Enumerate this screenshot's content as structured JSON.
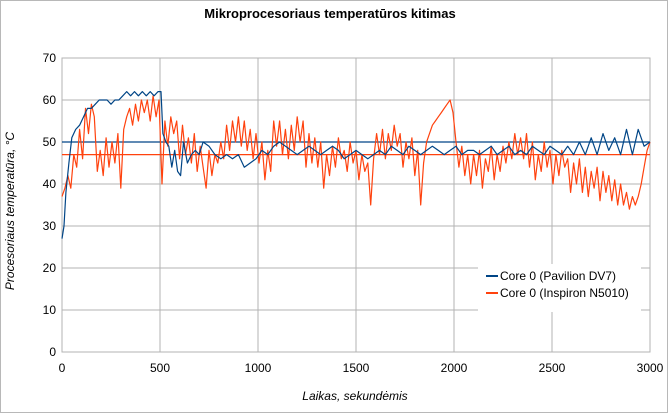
{
  "chart_data": {
    "type": "line",
    "title": "Mikroprocesoriaus temperatūros kitimas",
    "xlabel": "Laikas, sekundėmis",
    "ylabel": "Procesoriaus temperatūra, °C",
    "xlim": [
      0,
      3000
    ],
    "ylim": [
      0,
      70
    ],
    "xticks": [
      "0",
      "500",
      "1000",
      "1500",
      "2000",
      "2500",
      "3000"
    ],
    "yticks": [
      "0",
      "10",
      "20",
      "30",
      "40",
      "50",
      "60",
      "70"
    ],
    "grid": true,
    "legend_position": "bottom-right",
    "series": [
      {
        "name": "Core 0 (Pavilion DV7)",
        "color": "#004586",
        "reference_line": 50,
        "points": [
          [
            0,
            27
          ],
          [
            10,
            30
          ],
          [
            20,
            38
          ],
          [
            35,
            45
          ],
          [
            50,
            51
          ],
          [
            70,
            53
          ],
          [
            90,
            54
          ],
          [
            110,
            56
          ],
          [
            130,
            58
          ],
          [
            150,
            58
          ],
          [
            170,
            59
          ],
          [
            190,
            60
          ],
          [
            210,
            60
          ],
          [
            230,
            60
          ],
          [
            250,
            59
          ],
          [
            270,
            60
          ],
          [
            290,
            60
          ],
          [
            310,
            61
          ],
          [
            330,
            62
          ],
          [
            350,
            61
          ],
          [
            370,
            62
          ],
          [
            390,
            61
          ],
          [
            410,
            62
          ],
          [
            430,
            61
          ],
          [
            450,
            62
          ],
          [
            470,
            61
          ],
          [
            490,
            62
          ],
          [
            505,
            62
          ],
          [
            515,
            52
          ],
          [
            530,
            50
          ],
          [
            545,
            49
          ],
          [
            560,
            44
          ],
          [
            575,
            48
          ],
          [
            590,
            43
          ],
          [
            605,
            42
          ],
          [
            620,
            50
          ],
          [
            640,
            45
          ],
          [
            660,
            47
          ],
          [
            680,
            48
          ],
          [
            700,
            47
          ],
          [
            720,
            50
          ],
          [
            750,
            49
          ],
          [
            780,
            47
          ],
          [
            810,
            46
          ],
          [
            840,
            47
          ],
          [
            870,
            46
          ],
          [
            900,
            47
          ],
          [
            930,
            44
          ],
          [
            960,
            45
          ],
          [
            990,
            46
          ],
          [
            1020,
            48
          ],
          [
            1050,
            47
          ],
          [
            1080,
            49
          ],
          [
            1110,
            50
          ],
          [
            1140,
            49
          ],
          [
            1170,
            48
          ],
          [
            1200,
            47
          ],
          [
            1230,
            48
          ],
          [
            1260,
            49
          ],
          [
            1290,
            48
          ],
          [
            1320,
            47
          ],
          [
            1350,
            48
          ],
          [
            1380,
            49
          ],
          [
            1410,
            48
          ],
          [
            1440,
            46
          ],
          [
            1470,
            47
          ],
          [
            1500,
            48
          ],
          [
            1530,
            47
          ],
          [
            1560,
            46
          ],
          [
            1590,
            47
          ],
          [
            1620,
            48
          ],
          [
            1650,
            47
          ],
          [
            1680,
            49
          ],
          [
            1710,
            48
          ],
          [
            1740,
            47
          ],
          [
            1770,
            49
          ],
          [
            1800,
            48
          ],
          [
            1830,
            47
          ],
          [
            1860,
            48
          ],
          [
            1890,
            49
          ],
          [
            1920,
            48
          ],
          [
            1950,
            47
          ],
          [
            1980,
            48
          ],
          [
            2010,
            49
          ],
          [
            2040,
            47
          ],
          [
            2070,
            48
          ],
          [
            2100,
            48
          ],
          [
            2130,
            47
          ],
          [
            2160,
            48
          ],
          [
            2190,
            49
          ],
          [
            2220,
            47
          ],
          [
            2250,
            48
          ],
          [
            2280,
            49
          ],
          [
            2310,
            47
          ],
          [
            2340,
            48
          ],
          [
            2370,
            47
          ],
          [
            2400,
            49
          ],
          [
            2430,
            48
          ],
          [
            2460,
            47
          ],
          [
            2490,
            49
          ],
          [
            2520,
            48
          ],
          [
            2550,
            47
          ],
          [
            2580,
            49
          ],
          [
            2610,
            47
          ],
          [
            2640,
            50
          ],
          [
            2670,
            47
          ],
          [
            2700,
            51
          ],
          [
            2730,
            47
          ],
          [
            2760,
            52
          ],
          [
            2790,
            48
          ],
          [
            2820,
            51
          ],
          [
            2850,
            47
          ],
          [
            2880,
            53
          ],
          [
            2910,
            47
          ],
          [
            2940,
            53
          ],
          [
            2970,
            49
          ],
          [
            3000,
            50
          ]
        ]
      },
      {
        "name": "Core 0 (Inspiron N5010)",
        "color": "#ff420e",
        "reference_line": 47,
        "points": [
          [
            0,
            37
          ],
          [
            15,
            39
          ],
          [
            30,
            42
          ],
          [
            45,
            39
          ],
          [
            60,
            47
          ],
          [
            75,
            44
          ],
          [
            90,
            53
          ],
          [
            105,
            46
          ],
          [
            120,
            58
          ],
          [
            135,
            52
          ],
          [
            150,
            59
          ],
          [
            165,
            56
          ],
          [
            180,
            43
          ],
          [
            195,
            48
          ],
          [
            210,
            42
          ],
          [
            225,
            51
          ],
          [
            240,
            44
          ],
          [
            255,
            50
          ],
          [
            270,
            45
          ],
          [
            285,
            52
          ],
          [
            300,
            39
          ],
          [
            315,
            53
          ],
          [
            330,
            56
          ],
          [
            345,
            58
          ],
          [
            360,
            54
          ],
          [
            375,
            59
          ],
          [
            390,
            55
          ],
          [
            405,
            60
          ],
          [
            420,
            57
          ],
          [
            435,
            60
          ],
          [
            450,
            55
          ],
          [
            465,
            61
          ],
          [
            480,
            56
          ],
          [
            495,
            60
          ],
          [
            510,
            40
          ],
          [
            525,
            55
          ],
          [
            540,
            49
          ],
          [
            555,
            56
          ],
          [
            570,
            52
          ],
          [
            585,
            55
          ],
          [
            600,
            46
          ],
          [
            615,
            54
          ],
          [
            630,
            47
          ],
          [
            645,
            51
          ],
          [
            660,
            45
          ],
          [
            675,
            52
          ],
          [
            690,
            43
          ],
          [
            705,
            49
          ],
          [
            720,
            44
          ],
          [
            735,
            39
          ],
          [
            750,
            48
          ],
          [
            765,
            42
          ],
          [
            780,
            47
          ],
          [
            795,
            45
          ],
          [
            810,
            50
          ],
          [
            825,
            46
          ],
          [
            840,
            54
          ],
          [
            855,
            48
          ],
          [
            870,
            55
          ],
          [
            885,
            50
          ],
          [
            900,
            56
          ],
          [
            915,
            49
          ],
          [
            930,
            55
          ],
          [
            945,
            48
          ],
          [
            960,
            53
          ],
          [
            975,
            46
          ],
          [
            990,
            52
          ],
          [
            1005,
            45
          ],
          [
            1020,
            50
          ],
          [
            1035,
            41
          ],
          [
            1050,
            48
          ],
          [
            1065,
            43
          ],
          [
            1080,
            55
          ],
          [
            1095,
            49
          ],
          [
            1110,
            55
          ],
          [
            1125,
            47
          ],
          [
            1140,
            53
          ],
          [
            1155,
            46
          ],
          [
            1170,
            54
          ],
          [
            1185,
            48
          ],
          [
            1200,
            56
          ],
          [
            1215,
            50
          ],
          [
            1230,
            55
          ],
          [
            1245,
            44
          ],
          [
            1260,
            52
          ],
          [
            1275,
            45
          ],
          [
            1290,
            51
          ],
          [
            1305,
            44
          ],
          [
            1320,
            50
          ],
          [
            1335,
            39
          ],
          [
            1350,
            47
          ],
          [
            1365,
            42
          ],
          [
            1380,
            49
          ],
          [
            1395,
            44
          ],
          [
            1410,
            51
          ],
          [
            1425,
            46
          ],
          [
            1440,
            48
          ],
          [
            1455,
            43
          ],
          [
            1470,
            50
          ],
          [
            1485,
            45
          ],
          [
            1500,
            48
          ],
          [
            1515,
            41
          ],
          [
            1530,
            47
          ],
          [
            1545,
            43
          ],
          [
            1560,
            45
          ],
          [
            1575,
            35
          ],
          [
            1590,
            46
          ],
          [
            1605,
            52
          ],
          [
            1620,
            47
          ],
          [
            1635,
            53
          ],
          [
            1650,
            46
          ],
          [
            1665,
            52
          ],
          [
            1680,
            48
          ],
          [
            1695,
            54
          ],
          [
            1710,
            49
          ],
          [
            1725,
            52
          ],
          [
            1740,
            44
          ],
          [
            1755,
            50
          ],
          [
            1770,
            46
          ],
          [
            1785,
            51
          ],
          [
            1800,
            42
          ],
          [
            1815,
            48
          ],
          [
            1830,
            35
          ],
          [
            1845,
            45
          ],
          [
            1860,
            50
          ],
          [
            1875,
            52
          ],
          [
            1890,
            54
          ],
          [
            1905,
            55
          ],
          [
            1920,
            56
          ],
          [
            1935,
            57
          ],
          [
            1950,
            58
          ],
          [
            1965,
            59
          ],
          [
            1980,
            60
          ],
          [
            1995,
            57
          ],
          [
            2010,
            50
          ],
          [
            2025,
            44
          ],
          [
            2040,
            49
          ],
          [
            2055,
            42
          ],
          [
            2070,
            47
          ],
          [
            2085,
            40
          ],
          [
            2100,
            47
          ],
          [
            2115,
            42
          ],
          [
            2130,
            48
          ],
          [
            2145,
            39
          ],
          [
            2160,
            46
          ],
          [
            2175,
            43
          ],
          [
            2190,
            49
          ],
          [
            2205,
            41
          ],
          [
            2220,
            47
          ],
          [
            2235,
            43
          ],
          [
            2250,
            49
          ],
          [
            2265,
            45
          ],
          [
            2280,
            50
          ],
          [
            2295,
            46
          ],
          [
            2310,
            52
          ],
          [
            2325,
            47
          ],
          [
            2340,
            51
          ],
          [
            2355,
            46
          ],
          [
            2370,
            52
          ],
          [
            2385,
            44
          ],
          [
            2400,
            50
          ],
          [
            2415,
            41
          ],
          [
            2430,
            47
          ],
          [
            2445,
            43
          ],
          [
            2460,
            50
          ],
          [
            2475,
            44
          ],
          [
            2490,
            48
          ],
          [
            2505,
            40
          ],
          [
            2520,
            47
          ],
          [
            2535,
            42
          ],
          [
            2550,
            48
          ],
          [
            2565,
            44
          ],
          [
            2580,
            46
          ],
          [
            2595,
            38
          ],
          [
            2610,
            45
          ],
          [
            2625,
            40
          ],
          [
            2640,
            46
          ],
          [
            2655,
            38
          ],
          [
            2670,
            44
          ],
          [
            2685,
            37
          ],
          [
            2700,
            43
          ],
          [
            2715,
            39
          ],
          [
            2730,
            44
          ],
          [
            2745,
            36
          ],
          [
            2760,
            43
          ],
          [
            2775,
            38
          ],
          [
            2790,
            42
          ],
          [
            2805,
            36
          ],
          [
            2820,
            41
          ],
          [
            2835,
            35
          ],
          [
            2850,
            40
          ],
          [
            2865,
            35
          ],
          [
            2880,
            38
          ],
          [
            2895,
            34
          ],
          [
            2910,
            37
          ],
          [
            2925,
            35
          ],
          [
            2940,
            37
          ],
          [
            2955,
            40
          ],
          [
            2970,
            44
          ],
          [
            2985,
            48
          ],
          [
            3000,
            50
          ]
        ]
      }
    ]
  }
}
